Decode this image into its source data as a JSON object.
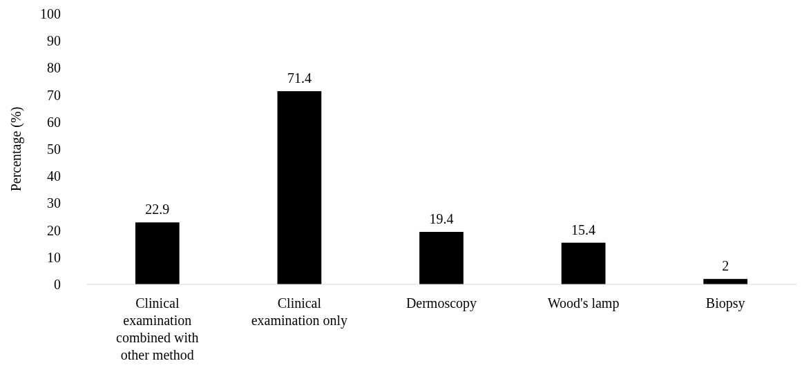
{
  "chart_data": {
    "type": "bar",
    "ylabel": "Percentage (%)",
    "categories": [
      "Clinical examination combined with other method",
      "Clinical examination only",
      "Dermoscopy",
      "Wood's lamp",
      "Biopsy"
    ],
    "values": [
      22.9,
      71.4,
      19.4,
      15.4,
      2
    ],
    "color": "#000000",
    "ylim": [
      0,
      100
    ],
    "yticks": [
      0,
      10,
      20,
      30,
      40,
      50,
      60,
      70,
      80,
      90,
      100
    ],
    "data_labels": true
  }
}
